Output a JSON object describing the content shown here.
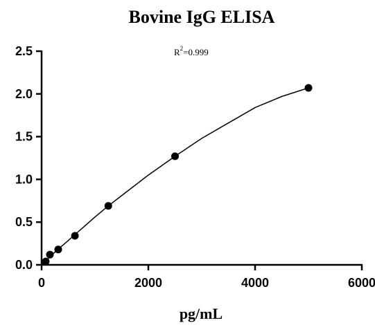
{
  "chart_data": {
    "type": "scatter",
    "title": "Bovine IgG ELISA",
    "xlabel": "pg/mL",
    "ylabel": "",
    "xlim": [
      0,
      6000
    ],
    "ylim": [
      0,
      2.5
    ],
    "x_ticks": [
      "0",
      "2000",
      "4000",
      "6000"
    ],
    "y_ticks": [
      "0.0",
      "0.5",
      "1.0",
      "1.5",
      "2.0",
      "2.5"
    ],
    "x_tick_values": [
      0,
      2000,
      4000,
      6000
    ],
    "y_tick_values": [
      0,
      0.5,
      1.0,
      1.5,
      2.0,
      2.5
    ],
    "annotation": {
      "base": "R",
      "superscript": "2",
      "text": "=0.999"
    },
    "grid": false,
    "series": [
      {
        "x": [
          78,
          156,
          312,
          625,
          1250,
          2500,
          5000
        ],
        "values": [
          0.04,
          0.12,
          0.18,
          0.34,
          0.69,
          1.27,
          2.07
        ]
      }
    ],
    "fit_curve": {
      "x": [
        0,
        100,
        200,
        300,
        400,
        600,
        800,
        1000,
        1250,
        1500,
        2000,
        2500,
        3000,
        3500,
        4000,
        4500,
        5000
      ],
      "values": [
        0.0,
        0.06,
        0.12,
        0.18,
        0.23,
        0.34,
        0.45,
        0.56,
        0.69,
        0.81,
        1.05,
        1.27,
        1.48,
        1.66,
        1.84,
        1.97,
        2.07
      ]
    }
  }
}
